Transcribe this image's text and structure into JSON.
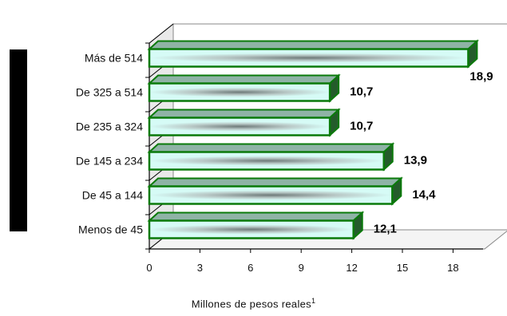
{
  "chart_data": {
    "type": "bar",
    "orientation": "horizontal",
    "categories": [
      "Más de 514",
      "De 325 a 514",
      "De 235 a 324",
      "De 145 a 234",
      "De 45 a 144",
      "Menos de 45"
    ],
    "values": [
      18.9,
      10.7,
      10.7,
      13.9,
      14.4,
      12.1
    ],
    "value_labels": [
      "18,9",
      "10,7",
      "10,7",
      "13,9",
      "14,4",
      "12,1"
    ],
    "xlabel": "Millones de pesos reales",
    "xlabel_superscript": "1",
    "xlim": [
      0,
      21
    ],
    "xticks": [
      0,
      3,
      6,
      9,
      12,
      15,
      18
    ],
    "grid": false,
    "legend": "none",
    "colors": {
      "bar_border": "#0a7a0a",
      "bar_fill_light": "#d6fbf6",
      "bar_fill_dark": "#6e7a79",
      "bar_top": "#8fb3a6",
      "bar_side": "#245c2b",
      "wall": "#ffffff",
      "axis": "#000000"
    }
  }
}
